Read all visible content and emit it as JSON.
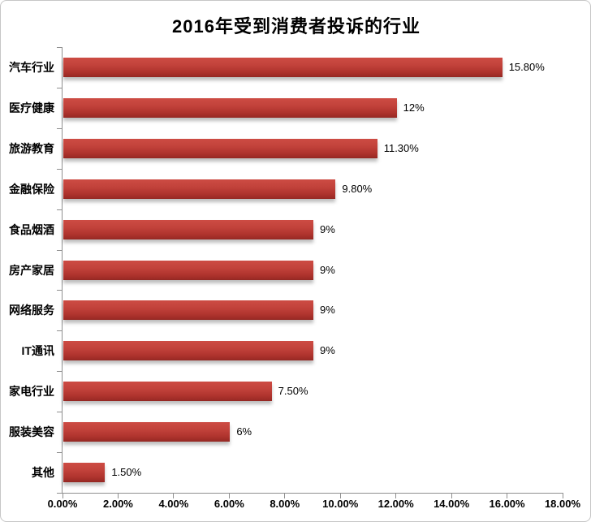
{
  "title": "2016年受到消费者投诉的行业",
  "chart_data": {
    "type": "bar",
    "orientation": "horizontal",
    "title": "2016年受到消费者投诉的行业",
    "categories": [
      "汽车行业",
      "医疗健康",
      "旅游教育",
      "金融保险",
      "食品烟酒",
      "房产家居",
      "网络服务",
      "IT通讯",
      "家电行业",
      "服装美容",
      "其他"
    ],
    "values": [
      15.8,
      12,
      11.3,
      9.8,
      9,
      9,
      9,
      9,
      7.5,
      6,
      1.5
    ],
    "value_labels": [
      "15.80%",
      "12%",
      "11.30%",
      "9.80%",
      "9%",
      "9%",
      "9%",
      "9%",
      "7.50%",
      "6%",
      "1.50%"
    ],
    "x_tick_labels": [
      "0.00%",
      "2.00%",
      "4.00%",
      "6.00%",
      "8.00%",
      "10.00%",
      "12.00%",
      "14.00%",
      "16.00%",
      "18.00%"
    ],
    "xlim": [
      0,
      18
    ],
    "xlabel": "",
    "ylabel": "",
    "grid": "off",
    "legend": "none",
    "bar_color_top": "#cd4c44",
    "bar_color_bottom": "#9a2a25",
    "axis_color": "#8f8f8f",
    "background_color": "#ffffff"
  }
}
